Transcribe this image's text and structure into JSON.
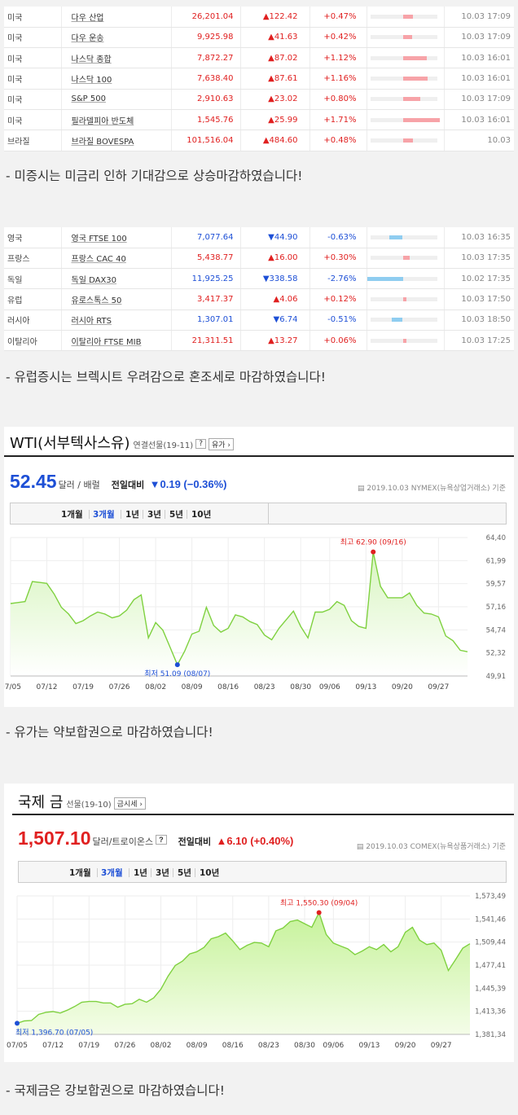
{
  "us_table": {
    "rows": [
      {
        "country": "미국",
        "name": "다우 산업",
        "value": "26,201.04",
        "change": "▲122.42",
        "dir": "up",
        "pct": "+0.47%",
        "pct_num": 0.47,
        "time": "10.03 17:09"
      },
      {
        "country": "미국",
        "name": "다우 운송",
        "value": "9,925.98",
        "change": "▲41.63",
        "dir": "up",
        "pct": "+0.42%",
        "pct_num": 0.42,
        "time": "10.03 17:09"
      },
      {
        "country": "미국",
        "name": "나스닥 종합",
        "value": "7,872.27",
        "change": "▲87.02",
        "dir": "up",
        "pct": "+1.12%",
        "pct_num": 1.12,
        "time": "10.03 16:01"
      },
      {
        "country": "미국",
        "name": "나스닥 100",
        "value": "7,638.40",
        "change": "▲87.61",
        "dir": "up",
        "pct": "+1.16%",
        "pct_num": 1.16,
        "time": "10.03 16:01"
      },
      {
        "country": "미국",
        "name": "S&P 500",
        "value": "2,910.63",
        "change": "▲23.02",
        "dir": "up",
        "pct": "+0.80%",
        "pct_num": 0.8,
        "time": "10.03 17:09"
      },
      {
        "country": "미국",
        "name": "필라델피아 반도체",
        "value": "1,545.76",
        "change": "▲25.99",
        "dir": "up",
        "pct": "+1.71%",
        "pct_num": 1.71,
        "time": "10.03 16:01"
      },
      {
        "country": "브라질",
        "name": "브라질 BOVESPA",
        "value": "101,516.04",
        "change": "▲484.60",
        "dir": "up",
        "pct": "+0.48%",
        "pct_num": 0.48,
        "time": "10.03"
      }
    ]
  },
  "caption_us": "- 미증시는 미금리 인하 기대감으로 상승마감하였습니다!",
  "eu_table": {
    "rows": [
      {
        "country": "영국",
        "name": "영국 FTSE 100",
        "value": "7,077.64",
        "change": "▼44.90",
        "dir": "dn",
        "pct": "-0.63%",
        "pct_num": -0.63,
        "time": "10.03 16:35"
      },
      {
        "country": "프랑스",
        "name": "프랑스 CAC 40",
        "value": "5,438.77",
        "change": "▲16.00",
        "dir": "up",
        "pct": "+0.30%",
        "pct_num": 0.3,
        "time": "10.03 17:35"
      },
      {
        "country": "독일",
        "name": "독일 DAX30",
        "value": "11,925.25",
        "change": "▼338.58",
        "dir": "dn",
        "pct": "-2.76%",
        "pct_num": -2.76,
        "time": "10.02 17:35"
      },
      {
        "country": "유럽",
        "name": "유로스톡스 50",
        "value": "3,417.37",
        "change": "▲4.06",
        "dir": "up",
        "pct": "+0.12%",
        "pct_num": 0.12,
        "time": "10.03 17:50"
      },
      {
        "country": "러시아",
        "name": "러시아 RTS",
        "value": "1,307.01",
        "change": "▼6.74",
        "dir": "dn",
        "pct": "-0.51%",
        "pct_num": -0.51,
        "time": "10.03 18:50"
      },
      {
        "country": "이탈리아",
        "name": "이탈리아 FTSE MIB",
        "value": "21,311.51",
        "change": "▲13.27",
        "dir": "up",
        "pct": "+0.06%",
        "pct_num": 0.06,
        "time": "10.03 17:25"
      }
    ]
  },
  "caption_eu": "- 유럽증시는 브렉시트 우려감으로 혼조세로 마감하였습니다!",
  "wti": {
    "title": "WTI(서부텍사스유)",
    "subtitle": "연결선물(19-11)",
    "help_btn": "?",
    "link_btn": "유가 ›",
    "price": "52.45",
    "unit": "달러 / 배럴",
    "change_label": "전일대비",
    "change": "▼0.19 (−0.36%)",
    "source": "2019.10.03  NYMEX(뉴욕상업거래소) 기준",
    "tabs": [
      "1개월",
      "3개월",
      "1년",
      "3년",
      "5년",
      "10년"
    ],
    "high_label": "최고 62.90 (09/16)",
    "low_label": "최저 51.09 (08/07)",
    "colors": {
      "price": "#1d4fd6",
      "line": "#7fd140",
      "fill_top": "#d8f5c0",
      "fill_bottom": "#ffffff"
    }
  },
  "caption_wti": "- 유가는 약보합권으로 마감하였습니다!",
  "gold": {
    "title": "국제 금",
    "subtitle": "선물(19-10)",
    "link_btn": "금시세 ›",
    "price": "1,507.10",
    "unit": "달러/트로이온스",
    "help_btn": "?",
    "change_label": "전일대비",
    "change": "▲6.10 (+0.40%)",
    "source": "2019.10.03  COMEX(뉴욕상품거래소) 기준",
    "tabs": [
      "1개월",
      "3개월",
      "1년",
      "3년",
      "5년",
      "10년"
    ],
    "high_label": "최고 1,550.30 (09/04)",
    "low_label": "최저 1,396.70 (07/05)",
    "colors": {
      "price": "#e02020",
      "line": "#7fd140",
      "fill_top": "#c6f29a",
      "fill_bottom": "#f4fde8"
    }
  },
  "caption_gold": "- 국제금은 강보합권으로 마감하였습니다!",
  "chart_data": [
    {
      "type": "area",
      "x": [
        "07/05",
        "07/08",
        "07/09",
        "07/10",
        "07/11",
        "07/12",
        "07/15",
        "07/16",
        "07/17",
        "07/18",
        "07/19",
        "07/22",
        "07/23",
        "07/24",
        "07/25",
        "07/26",
        "07/29",
        "07/30",
        "07/31",
        "08/01",
        "08/02",
        "08/05",
        "08/06",
        "08/07",
        "08/08",
        "08/09",
        "08/12",
        "08/13",
        "08/14",
        "08/15",
        "08/16",
        "08/19",
        "08/20",
        "08/21",
        "08/22",
        "08/23",
        "08/26",
        "08/27",
        "08/28",
        "08/29",
        "08/30",
        "09/03",
        "09/04",
        "09/05",
        "09/06",
        "09/09",
        "09/10",
        "09/11",
        "09/12",
        "09/13",
        "09/16",
        "09/17",
        "09/18",
        "09/19",
        "09/20",
        "09/23",
        "09/24",
        "09/25",
        "09/26",
        "09/27",
        "09/30",
        "10/01",
        "10/02",
        "10/03"
      ],
      "series": [
        {
          "values": [
            57.5,
            57.6,
            57.7,
            59.8,
            59.7,
            59.6,
            58.5,
            57.1,
            56.4,
            55.4,
            55.7,
            56.2,
            56.6,
            56.4,
            56.0,
            56.2,
            56.8,
            57.9,
            58.4,
            53.9,
            55.5,
            54.7,
            52.9,
            51.09,
            52.5,
            54.3,
            54.6,
            57.1,
            55.2,
            54.5,
            54.9,
            56.3,
            56.1,
            55.6,
            55.3,
            54.2,
            53.7,
            54.9,
            55.8,
            56.7,
            55.1,
            53.9,
            56.6,
            56.6,
            56.9,
            57.7,
            57.3,
            55.7,
            55.1,
            54.9,
            62.9,
            59.3,
            58.1,
            58.1,
            58.1,
            58.6,
            57.3,
            56.5,
            56.4,
            56.1,
            54.1,
            53.6,
            52.6,
            52.45
          ]
        }
      ],
      "title": "WTI(서부텍사스유)",
      "x_ticks": [
        "07/05",
        "07/12",
        "07/19",
        "07/26",
        "08/02",
        "08/09",
        "08/16",
        "08/23",
        "08/30",
        "09/06",
        "09/13",
        "09/20",
        "09/27"
      ],
      "y_ticks": [
        "49,91",
        "52,32",
        "54,74",
        "57,16",
        "59,57",
        "61,99",
        "64,40"
      ],
      "ylim": [
        49.91,
        64.4
      ],
      "grid": true
    },
    {
      "type": "area",
      "x": [
        "07/05",
        "07/08",
        "07/09",
        "07/10",
        "07/11",
        "07/12",
        "07/15",
        "07/16",
        "07/17",
        "07/18",
        "07/19",
        "07/22",
        "07/23",
        "07/24",
        "07/25",
        "07/26",
        "07/29",
        "07/30",
        "07/31",
        "08/01",
        "08/02",
        "08/05",
        "08/06",
        "08/07",
        "08/08",
        "08/09",
        "08/12",
        "08/13",
        "08/14",
        "08/15",
        "08/16",
        "08/19",
        "08/20",
        "08/21",
        "08/22",
        "08/23",
        "08/26",
        "08/27",
        "08/28",
        "08/29",
        "08/30",
        "09/03",
        "09/04",
        "09/05",
        "09/06",
        "09/09",
        "09/10",
        "09/11",
        "09/12",
        "09/13",
        "09/16",
        "09/17",
        "09/18",
        "09/19",
        "09/20",
        "09/23",
        "09/24",
        "09/25",
        "09/26",
        "09/27",
        "09/30",
        "10/01",
        "10/02",
        "10/03"
      ],
      "series": [
        {
          "values": [
            1396.7,
            1400,
            1400.5,
            1409,
            1412,
            1413,
            1411,
            1415,
            1420,
            1426,
            1427,
            1427,
            1425,
            1425,
            1419,
            1423,
            1424,
            1430,
            1426,
            1432,
            1444,
            1462,
            1477,
            1483,
            1493,
            1496,
            1502,
            1514,
            1517,
            1522,
            1511,
            1499,
            1505,
            1509,
            1508,
            1503,
            1525,
            1529,
            1538,
            1540,
            1535,
            1530,
            1550.3,
            1520,
            1508,
            1504,
            1500,
            1492,
            1497,
            1503,
            1499,
            1506,
            1496,
            1503,
            1523,
            1530,
            1512,
            1506,
            1508,
            1498,
            1470,
            1485,
            1501,
            1507.1
          ]
        }
      ],
      "title": "국제 금",
      "x_ticks": [
        "07/05",
        "07/12",
        "07/19",
        "07/26",
        "08/02",
        "08/09",
        "08/16",
        "08/23",
        "08/30",
        "09/06",
        "09/13",
        "09/20",
        "09/27"
      ],
      "y_ticks": [
        "1,381,34",
        "1,413,36",
        "1,445,39",
        "1,477,41",
        "1,509,44",
        "1,541,46",
        "1,573,49"
      ],
      "ylim": [
        1381.34,
        1573.49
      ],
      "grid": true
    }
  ]
}
